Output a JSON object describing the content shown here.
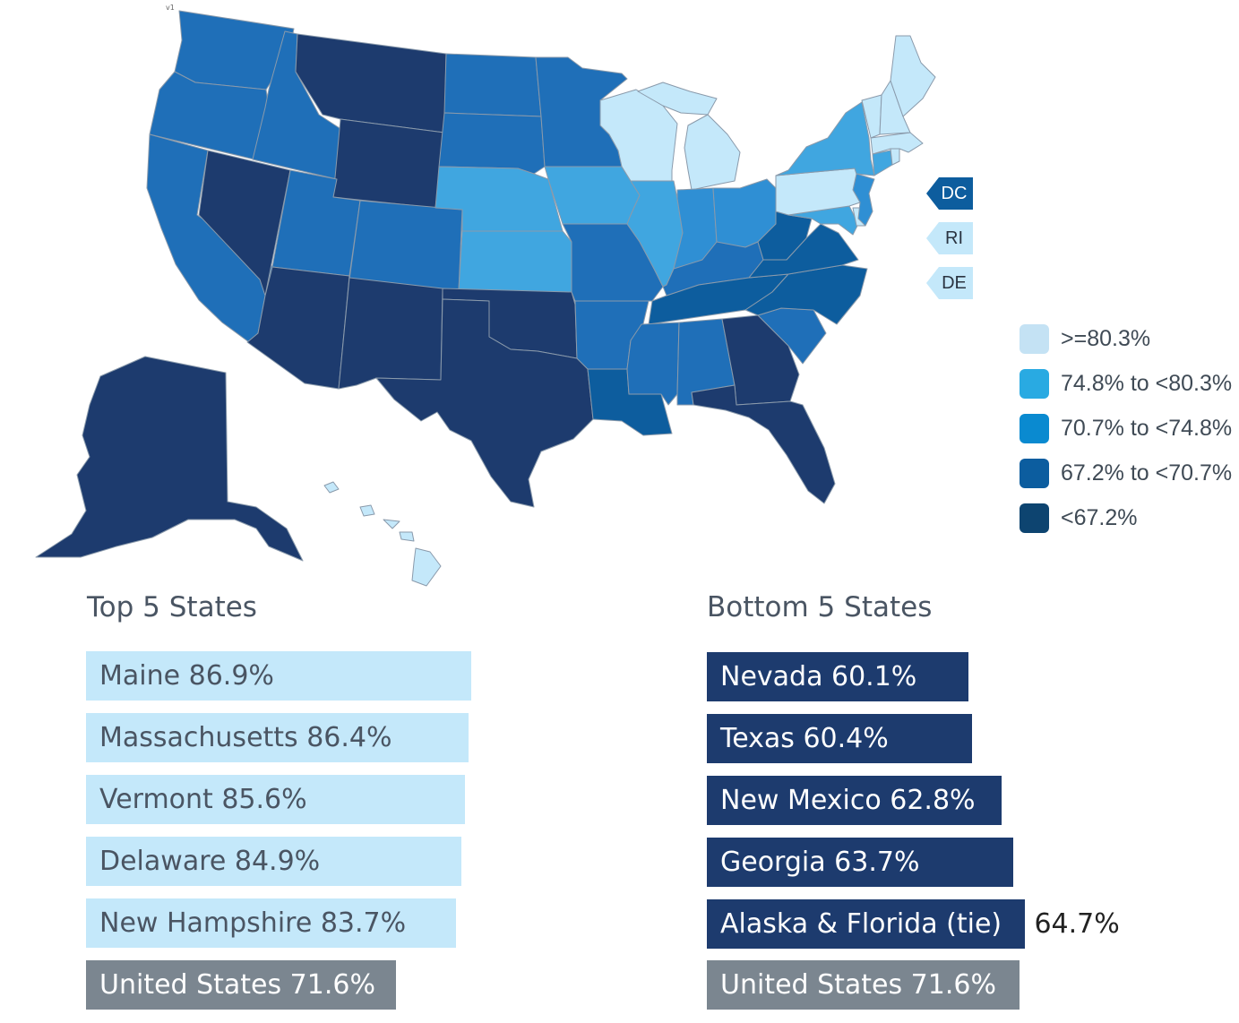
{
  "version_label": "v1",
  "colors": {
    "c1": "#c4e8fa",
    "c2": "#40a6e0",
    "c3": "#2f8fd4",
    "c4": "#1f6fb8",
    "c5": "#1d3b6e",
    "c5b": "#0d5d9e",
    "us_gray": "#7b8690"
  },
  "legend": [
    {
      "label": ">=80.3%",
      "color": "#c4e2f4"
    },
    {
      "label": "74.8% to <80.3%",
      "color": "#29aae2"
    },
    {
      "label": "70.7% to <74.8%",
      "color": "#0a8ad0"
    },
    {
      "label": "67.2% to <70.7%",
      "color": "#0c5d9f"
    },
    {
      "label": "<67.2%",
      "color": "#0d4470"
    }
  ],
  "callouts": [
    {
      "label": "DC",
      "tier": "c5b"
    },
    {
      "label": "RI",
      "tier": "c1"
    },
    {
      "label": "DE",
      "tier": "c1"
    }
  ],
  "top": {
    "heading": "Top 5 States",
    "items": [
      {
        "text": "Maine 86.9%",
        "value": 86.9
      },
      {
        "text": "Massachusetts 86.4%",
        "value": 86.4
      },
      {
        "text": "Vermont 85.6%",
        "value": 85.6
      },
      {
        "text": "Delaware 84.9%",
        "value": 84.9
      },
      {
        "text": "New Hampshire 83.7%",
        "value": 83.7
      }
    ],
    "us": {
      "text": "United States 71.6%",
      "value": 71.6
    }
  },
  "bottom": {
    "heading": "Bottom 5 States",
    "items": [
      {
        "text": "Nevada 60.1%",
        "value": 60.1
      },
      {
        "text": "Texas 60.4%",
        "value": 60.4
      },
      {
        "text": "New Mexico 62.8%",
        "value": 62.8
      },
      {
        "text": "Georgia 63.7%",
        "value": 63.7
      },
      {
        "text": "Alaska & Florida (tie)",
        "value": 64.7,
        "suffix": "64.7%"
      }
    ],
    "us": {
      "text": "United States 71.6%",
      "value": 71.6
    }
  },
  "states": [
    {
      "name": "Washington",
      "tier": "c4"
    },
    {
      "name": "Oregon",
      "tier": "c4"
    },
    {
      "name": "California",
      "tier": "c4"
    },
    {
      "name": "Idaho",
      "tier": "c4"
    },
    {
      "name": "Nevada",
      "tier": "c5"
    },
    {
      "name": "Montana",
      "tier": "c5"
    },
    {
      "name": "Wyoming",
      "tier": "c5"
    },
    {
      "name": "Utah",
      "tier": "c4"
    },
    {
      "name": "Arizona",
      "tier": "c5"
    },
    {
      "name": "Colorado",
      "tier": "c4"
    },
    {
      "name": "New Mexico",
      "tier": "c5"
    },
    {
      "name": "North Dakota",
      "tier": "c4"
    },
    {
      "name": "South Dakota",
      "tier": "c4"
    },
    {
      "name": "Nebraska",
      "tier": "c2"
    },
    {
      "name": "Kansas",
      "tier": "c2"
    },
    {
      "name": "Oklahoma",
      "tier": "c5"
    },
    {
      "name": "Texas",
      "tier": "c5"
    },
    {
      "name": "Minnesota",
      "tier": "c4"
    },
    {
      "name": "Iowa",
      "tier": "c2"
    },
    {
      "name": "Missouri",
      "tier": "c4"
    },
    {
      "name": "Arkansas",
      "tier": "c4"
    },
    {
      "name": "Louisiana",
      "tier": "c5b"
    },
    {
      "name": "Wisconsin",
      "tier": "c1"
    },
    {
      "name": "Illinois",
      "tier": "c2"
    },
    {
      "name": "Michigan",
      "tier": "c1"
    },
    {
      "name": "Indiana",
      "tier": "c3"
    },
    {
      "name": "Ohio",
      "tier": "c3"
    },
    {
      "name": "Kentucky",
      "tier": "c4"
    },
    {
      "name": "Tennessee",
      "tier": "c5b"
    },
    {
      "name": "Mississippi",
      "tier": "c4"
    },
    {
      "name": "Alabama",
      "tier": "c4"
    },
    {
      "name": "Georgia",
      "tier": "c5"
    },
    {
      "name": "Florida",
      "tier": "c5"
    },
    {
      "name": "South Carolina",
      "tier": "c4"
    },
    {
      "name": "North Carolina",
      "tier": "c5b"
    },
    {
      "name": "Virginia",
      "tier": "c5b"
    },
    {
      "name": "West Virginia",
      "tier": "c5b"
    },
    {
      "name": "Maryland",
      "tier": "c2"
    },
    {
      "name": "Delaware",
      "tier": "c1"
    },
    {
      "name": "New Jersey",
      "tier": "c3"
    },
    {
      "name": "Pennsylvania",
      "tier": "c1"
    },
    {
      "name": "New York",
      "tier": "c2"
    },
    {
      "name": "Connecticut",
      "tier": "c2"
    },
    {
      "name": "Rhode Island",
      "tier": "c1"
    },
    {
      "name": "Massachusetts",
      "tier": "c1"
    },
    {
      "name": "Vermont",
      "tier": "c1"
    },
    {
      "name": "New Hampshire",
      "tier": "c1"
    },
    {
      "name": "Maine",
      "tier": "c1"
    },
    {
      "name": "Alaska",
      "tier": "c5"
    },
    {
      "name": "Hawaii",
      "tier": "c1"
    }
  ]
}
